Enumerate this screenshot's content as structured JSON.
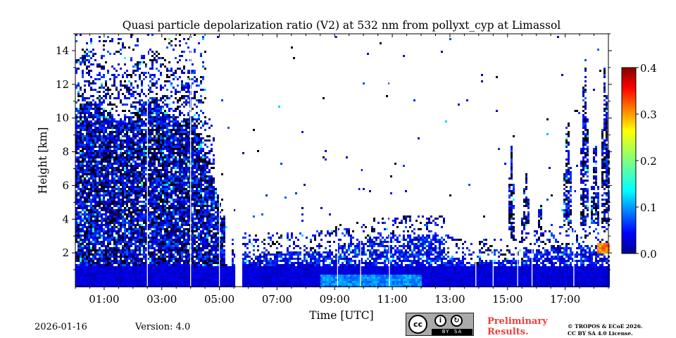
{
  "chart_data": {
    "type": "heatmap",
    "title": "Quasi particle depolarization ratio (V2) at 532 nm from pollyxt_cyp at Limassol",
    "xlabel": "Time [UTC]",
    "ylabel": "Height [km]",
    "x_range_hours": [
      0.0,
      18.5
    ],
    "ylim_km": [
      0.0,
      15.0
    ],
    "x_ticks": [
      "01:00",
      "03:00",
      "05:00",
      "07:00",
      "09:00",
      "11:00",
      "13:00",
      "15:00",
      "17:00"
    ],
    "x_tick_hours": [
      1,
      3,
      5,
      7,
      9,
      11,
      13,
      15,
      17
    ],
    "y_ticks": [
      "2",
      "4",
      "6",
      "8",
      "10",
      "12",
      "14"
    ],
    "y_tick_values": [
      2,
      4,
      6,
      8,
      10,
      12,
      14
    ],
    "colorbar": {
      "range": [
        0.0,
        0.4
      ],
      "ticks": [
        "0.0",
        "0.1",
        "0.2",
        "0.3",
        "0.4"
      ],
      "tick_values": [
        0.0,
        0.1,
        0.2,
        0.3,
        0.4
      ],
      "colormap": "jet"
    },
    "features": {
      "boundary_layer_top_km": 1.3,
      "dense_cloud_period_hours": [
        0.0,
        5.2
      ],
      "dense_cloud_top_km": 10.5,
      "sparse_top_km": 15.0,
      "data_gap_hours": [
        5.55,
        5.75
      ],
      "profile_gaps_hours": [
        2.5,
        4.0,
        5.0,
        9.1,
        9.9,
        10.9,
        13.9,
        14.5,
        15.35,
        15.85,
        17.3
      ],
      "convective_columns": [
        {
          "hour": 15.1,
          "top_km": 8.5
        },
        {
          "hour": 15.6,
          "top_km": 7.5
        },
        {
          "hour": 16.1,
          "top_km": 5.5
        },
        {
          "hour": 16.6,
          "top_km": 3.8
        },
        {
          "hour": 17.05,
          "top_km": 11.0
        },
        {
          "hour": 17.65,
          "top_km": 14.5
        },
        {
          "hour": 18.0,
          "top_km": 9.5
        },
        {
          "hour": 18.35,
          "top_km": 14.0
        }
      ],
      "high_value_patch": {
        "hours": [
          18.1,
          18.5
        ],
        "km": [
          2.0,
          2.6
        ],
        "value": 0.3
      }
    }
  },
  "footer": {
    "date": "2026-01-16",
    "version": "Version: 4.0",
    "preliminary_line1": "Preliminary",
    "preliminary_line2": "Results.",
    "copyright_line1": "© TROPOS & ECoE 2026.",
    "copyright_line2": "CC BY SA 4.0 License.",
    "license_cc": "cc",
    "license_by": "BY",
    "license_sa": "SA"
  },
  "colors": {
    "frame": "#000000",
    "preliminary_text": "#e8413a",
    "badge_bg": "#aaaaaa"
  }
}
